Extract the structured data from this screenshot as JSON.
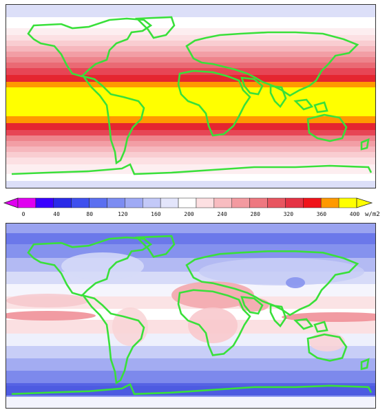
{
  "colorbar": {
    "ticks": [
      "0",
      "40",
      "80",
      "120",
      "160",
      "200",
      "240",
      "280",
      "320",
      "360",
      "400"
    ],
    "unit": "w/m2",
    "colors": [
      "#e000f0",
      "#3a00ff",
      "#2a2ae8",
      "#3f50ee",
      "#5b6ff0",
      "#7c8cf2",
      "#9faaf5",
      "#c3c9f8",
      "#e3e5fb",
      "#ffffff",
      "#fde0e2",
      "#f8bcc0",
      "#f39aa0",
      "#ee7880",
      "#e85560",
      "#e53244",
      "#f0131a",
      "#ff9900",
      "#ffff00"
    ]
  },
  "maps": {
    "top_description_colors": {
      "land_outline": "#39e03a",
      "band_colors": [
        "#dcdff8",
        "#ffffff",
        "#fde4e6",
        "#f8c5c9",
        "#f3a4aa",
        "#ee8086",
        "#e85560",
        "#e52530",
        "#ff9900",
        "#ffff00"
      ]
    },
    "bottom_description_colors": {
      "cold": "#5a66e6",
      "mid": "#a8b0f2",
      "warm": "#f4c0c4",
      "hot": "#ee7a82",
      "land_outline": "#39e03a"
    }
  }
}
